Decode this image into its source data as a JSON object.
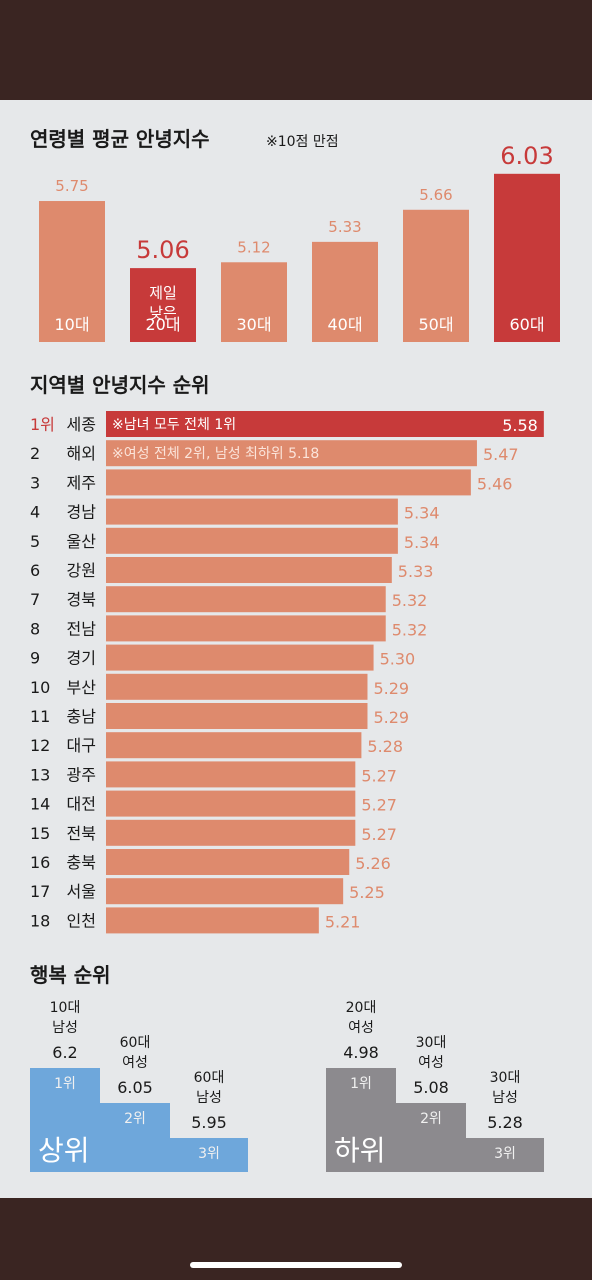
{
  "colors": {
    "bar": "#de8a6d",
    "highlight": "#c73a3a",
    "panel": "#e6e8ea",
    "frame": "#3a2522",
    "upper": "#6ea7db",
    "lower": "#8c8a8e"
  },
  "chart_data": [
    {
      "type": "bar",
      "title": "연령별 평균 안녕지수",
      "subtitle": "※10점 만점",
      "categories": [
        "10대",
        "20대",
        "30대",
        "40대",
        "50대",
        "60대"
      ],
      "values": [
        5.75,
        5.06,
        5.12,
        5.33,
        5.66,
        6.03
      ],
      "value_labels": [
        "5.75",
        "5.06",
        "5.12",
        "5.33",
        "5.66",
        "6.03"
      ],
      "highlight": [
        "20대",
        "60대"
      ],
      "annotation": "제일 낮은",
      "ylim": [
        4.3,
        6.1
      ]
    },
    {
      "type": "bar",
      "orientation": "horizontal",
      "title": "지역별 안녕지수 순위",
      "ranks": [
        "1위",
        "2",
        "3",
        "4",
        "5",
        "6",
        "7",
        "8",
        "9",
        "10",
        "11",
        "12",
        "13",
        "14",
        "15",
        "16",
        "17",
        "18"
      ],
      "categories": [
        "세종",
        "해외",
        "제주",
        "경남",
        "울산",
        "강원",
        "경북",
        "전남",
        "경기",
        "부산",
        "충남",
        "대구",
        "광주",
        "대전",
        "전북",
        "충북",
        "서울",
        "인천"
      ],
      "values": [
        5.58,
        5.47,
        5.46,
        5.34,
        5.34,
        5.33,
        5.32,
        5.32,
        5.3,
        5.29,
        5.29,
        5.28,
        5.27,
        5.27,
        5.27,
        5.26,
        5.25,
        5.21
      ],
      "value_labels": [
        "5.58",
        "5.47",
        "5.46",
        "5.34",
        "5.34",
        "5.33",
        "5.32",
        "5.32",
        "5.30",
        "5.29",
        "5.29",
        "5.28",
        "5.27",
        "5.27",
        "5.27",
        "5.26",
        "5.25",
        "5.21"
      ],
      "annotations": [
        "※남녀 모두 전체 1위",
        "※여성 전체 2위, 남성 최하위 5.18"
      ],
      "xlim": [
        4.86,
        5.6
      ]
    }
  ],
  "happiness": {
    "title": "행복 순위",
    "upper": {
      "label": "상위",
      "steps": [
        {
          "rank": "1위",
          "group1": "10대",
          "group2": "남성",
          "value": "6.2"
        },
        {
          "rank": "2위",
          "group1": "60대",
          "group2": "여성",
          "value": "6.05"
        },
        {
          "rank": "3위",
          "group1": "60대",
          "group2": "남성",
          "value": "5.95"
        }
      ]
    },
    "lower": {
      "label": "하위",
      "steps": [
        {
          "rank": "1위",
          "group1": "20대",
          "group2": "여성",
          "value": "4.98"
        },
        {
          "rank": "2위",
          "group1": "30대",
          "group2": "여성",
          "value": "5.08"
        },
        {
          "rank": "3위",
          "group1": "30대",
          "group2": "남성",
          "value": "5.28"
        }
      ]
    }
  }
}
